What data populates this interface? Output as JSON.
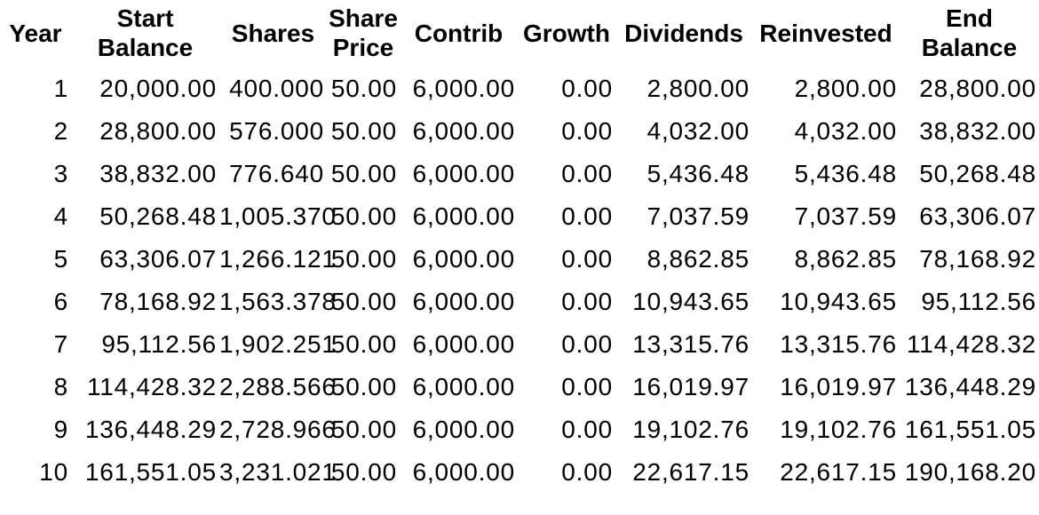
{
  "colors": {
    "background": "#ffffff",
    "text": "#000000"
  },
  "chart_data": {
    "type": "table",
    "columns": [
      "Year",
      "Start Balance",
      "Shares",
      "Share Price",
      "Contrib",
      "Growth",
      "Dividends",
      "Reinvested",
      "End Balance"
    ],
    "rows": [
      [
        "1",
        "20,000.00",
        "400.000",
        "50.00",
        "6,000.00",
        "0.00",
        "2,800.00",
        "2,800.00",
        "28,800.00"
      ],
      [
        "2",
        "28,800.00",
        "576.000",
        "50.00",
        "6,000.00",
        "0.00",
        "4,032.00",
        "4,032.00",
        "38,832.00"
      ],
      [
        "3",
        "38,832.00",
        "776.640",
        "50.00",
        "6,000.00",
        "0.00",
        "5,436.48",
        "5,436.48",
        "50,268.48"
      ],
      [
        "4",
        "50,268.48",
        "1,005.370",
        "50.00",
        "6,000.00",
        "0.00",
        "7,037.59",
        "7,037.59",
        "63,306.07"
      ],
      [
        "5",
        "63,306.07",
        "1,266.121",
        "50.00",
        "6,000.00",
        "0.00",
        "8,862.85",
        "8,862.85",
        "78,168.92"
      ],
      [
        "6",
        "78,168.92",
        "1,563.378",
        "50.00",
        "6,000.00",
        "0.00",
        "10,943.65",
        "10,943.65",
        "95,112.56"
      ],
      [
        "7",
        "95,112.56",
        "1,902.251",
        "50.00",
        "6,000.00",
        "0.00",
        "13,315.76",
        "13,315.76",
        "114,428.32"
      ],
      [
        "8",
        "114,428.32",
        "2,288.566",
        "50.00",
        "6,000.00",
        "0.00",
        "16,019.97",
        "16,019.97",
        "136,448.29"
      ],
      [
        "9",
        "136,448.29",
        "2,728.966",
        "50.00",
        "6,000.00",
        "0.00",
        "19,102.76",
        "19,102.76",
        "161,551.05"
      ],
      [
        "10",
        "161,551.05",
        "3,231.021",
        "50.00",
        "6,000.00",
        "0.00",
        "22,617.15",
        "22,617.15",
        "190,168.20"
      ]
    ]
  }
}
